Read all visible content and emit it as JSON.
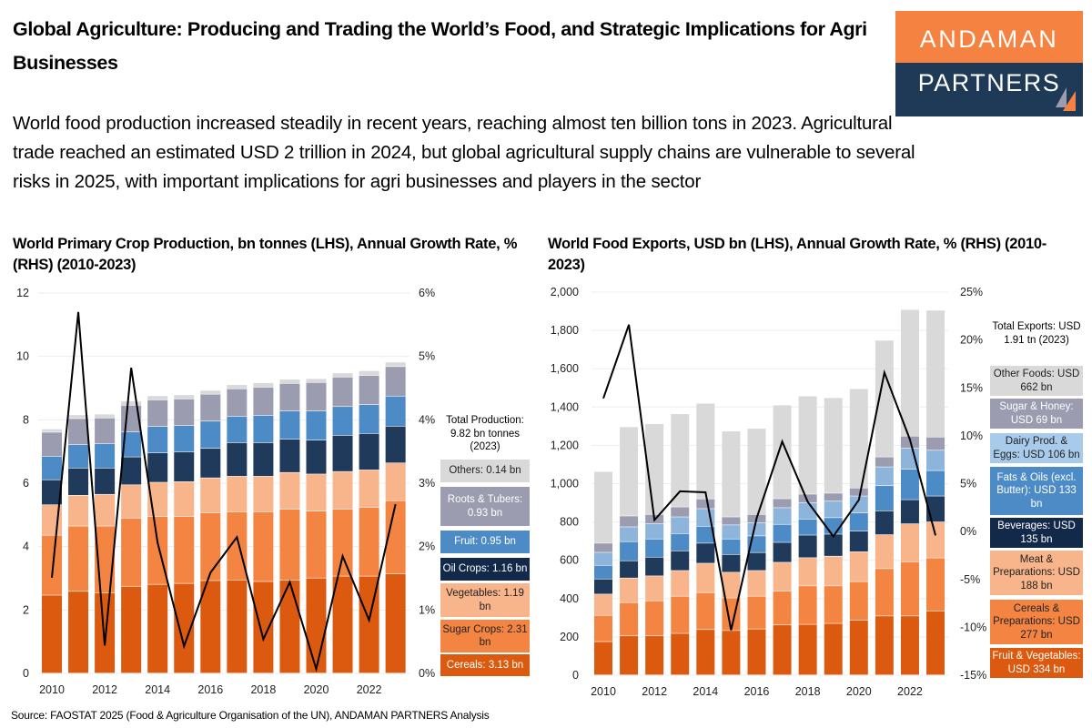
{
  "header": {
    "title": "Global Agriculture: Producing and Trading the World’s Food, and Strategic Implications for Agri Businesses",
    "logo_line1": "ANDAMAN",
    "logo_line2": "PARTNERS",
    "logo_colors": {
      "top": "#F58240",
      "bottom": "#1E3A57"
    },
    "intro": "World food production increased steadily in recent years, reaching almost ten billion tons in 2023. Agricultural trade reached an estimated USD 2 trillion in 2024, but global agricultural supply chains are vulnerable to several risks in 2025, with important implications for agri businesses and players in the sector"
  },
  "source": "Source: FAOSTAT 2025 (Food & Agriculture Organisation of the UN), ANDAMAN PARTNERS Analysis",
  "legends": {
    "production": {
      "header": "Total Production: 9.82 bn tonnes (2023)",
      "items": [
        "Others: 0.14 bn",
        "Roots & Tubers: 0.93 bn",
        "Fruit: 0.95 bn",
        "Oil Crops: 1.16 bn",
        "Vegetables: 1.19 bn",
        "Sugar Crops: 2.31 bn",
        "Cereals: 3.13 bn"
      ]
    },
    "exports": {
      "header": "Total Exports: USD 1.91 tn (2023)",
      "items": [
        "Other Foods: USD 662 bn",
        "Sugar & Honey: USD 69 bn",
        "Dairy Prod. & Eggs: USD 106 bn",
        "Fats & Oils (excl. Butter): USD 133 bn",
        "Beverages: USD 135 bn",
        "Meat & Preparations: USD 188 bn",
        "Cereals & Preparations: USD 277 bn",
        "Fruit & Vegetables: USD 334 bn"
      ]
    }
  },
  "chart_data": [
    {
      "type": "bar",
      "stacked": true,
      "title": "World Primary Crop Production, bn tonnes (LHS), Annual Growth Rate, % (RHS) (2010-2023)",
      "categories": [
        2010,
        2011,
        2012,
        2013,
        2014,
        2015,
        2016,
        2017,
        2018,
        2019,
        2020,
        2021,
        2022,
        2023
      ],
      "x_tick_labels": [
        "2010",
        "2012",
        "2014",
        "2016",
        "2018",
        "2020",
        "2022"
      ],
      "ylim": [
        0,
        12
      ],
      "y_ticks": [
        "0",
        "2",
        "4",
        "6",
        "8",
        "10",
        "12"
      ],
      "y2lim": [
        0,
        6
      ],
      "y2_ticks": [
        "0%",
        "1%",
        "2%",
        "3%",
        "4%",
        "5%",
        "6%"
      ],
      "grid": true,
      "legend_placement": "right",
      "series": [
        {
          "key": "cereals",
          "color": "#DC5A0F",
          "values": [
            2.46,
            2.58,
            2.53,
            2.74,
            2.8,
            2.83,
            2.92,
            2.94,
            2.89,
            2.93,
            3.0,
            3.06,
            3.06,
            3.13
          ]
        },
        {
          "key": "sugar",
          "color": "#F38442",
          "values": [
            1.89,
            2.06,
            2.11,
            2.15,
            2.14,
            2.11,
            2.14,
            2.15,
            2.2,
            2.24,
            2.11,
            2.11,
            2.17,
            2.31
          ]
        },
        {
          "key": "vegetables",
          "color": "#F8B48A",
          "values": [
            0.96,
            0.97,
            1.0,
            1.05,
            1.08,
            1.1,
            1.1,
            1.12,
            1.12,
            1.16,
            1.17,
            1.19,
            1.18,
            1.19
          ]
        },
        {
          "key": "oil",
          "color": "#1F3A5A",
          "values": [
            0.79,
            0.86,
            0.83,
            0.88,
            0.93,
            0.94,
            0.93,
            1.06,
            1.06,
            1.05,
            1.07,
            1.14,
            1.15,
            1.16
          ]
        },
        {
          "key": "fruit",
          "color": "#4D8BC6",
          "values": [
            0.74,
            0.74,
            0.77,
            0.79,
            0.83,
            0.83,
            0.86,
            0.83,
            0.86,
            0.89,
            0.92,
            0.91,
            0.91,
            0.95
          ]
        },
        {
          "key": "roots",
          "color": "#9B9CAF",
          "values": [
            0.76,
            0.82,
            0.81,
            0.84,
            0.84,
            0.84,
            0.85,
            0.87,
            0.89,
            0.87,
            0.9,
            0.93,
            0.92,
            0.93
          ]
        },
        {
          "key": "others",
          "color": "#D9D9D9",
          "values": [
            0.1,
            0.12,
            0.12,
            0.13,
            0.13,
            0.13,
            0.12,
            0.13,
            0.14,
            0.13,
            0.12,
            0.13,
            0.15,
            0.14
          ]
        }
      ],
      "line": {
        "key": "growth",
        "axis": "right",
        "color": "#000000",
        "values": [
          1.51,
          5.7,
          0.44,
          4.82,
          2.06,
          0.43,
          1.59,
          2.15,
          0.54,
          1.44,
          0.07,
          1.85,
          0.84,
          2.67
        ]
      }
    },
    {
      "type": "bar",
      "stacked": true,
      "title": "World Food Exports, USD bn (LHS), Annual Growth Rate, % (RHS) (2010-2023)",
      "categories": [
        2010,
        2011,
        2012,
        2013,
        2014,
        2015,
        2016,
        2017,
        2018,
        2019,
        2020,
        2021,
        2022,
        2023
      ],
      "x_tick_labels": [
        "2010",
        "2012",
        "2014",
        "2016",
        "2018",
        "2020",
        "2022"
      ],
      "ylim": [
        0,
        2000
      ],
      "y_ticks": [
        "0",
        "200",
        "400",
        "600",
        "800",
        "1,000",
        "1,200",
        "1,400",
        "1,600",
        "1,800",
        "2,000"
      ],
      "y2lim": [
        -15,
        25
      ],
      "y2_ticks": [
        "-15%",
        "-10%",
        "-5%",
        "0%",
        "5%",
        "10%",
        "15%",
        "20%",
        "25%"
      ],
      "grid": true,
      "legend_placement": "right",
      "series": [
        {
          "key": "fruit_veg",
          "color": "#DC5A0F",
          "values": [
            174,
            204,
            204,
            217,
            237,
            232,
            240,
            261,
            264,
            269,
            285,
            308,
            308,
            334
          ]
        },
        {
          "key": "cereals",
          "color": "#F38442",
          "values": [
            137,
            174,
            183,
            194,
            193,
            170,
            171,
            177,
            201,
            196,
            202,
            247,
            283,
            277
          ]
        },
        {
          "key": "meat",
          "color": "#F8B48A",
          "values": [
            111,
            128,
            130,
            134,
            153,
            134,
            134,
            150,
            147,
            155,
            156,
            177,
            198,
            188
          ]
        },
        {
          "key": "beverages",
          "color": "#1F3A5A",
          "values": [
            79,
            90,
            98,
            103,
            105,
            93,
            94,
            104,
            118,
            115,
            108,
            125,
            126,
            135
          ]
        },
        {
          "key": "fats_oils",
          "color": "#4D8BC6",
          "values": [
            71,
            100,
            95,
            90,
            88,
            81,
            87,
            94,
            84,
            86,
            95,
            131,
            159,
            133
          ]
        },
        {
          "key": "dairy",
          "color": "#8DB5DC",
          "values": [
            68,
            77,
            79,
            87,
            92,
            73,
            68,
            87,
            86,
            86,
            88,
            98,
            110,
            106
          ]
        },
        {
          "key": "sugar_honey",
          "color": "#9B9CAF",
          "values": [
            48,
            57,
            49,
            52,
            51,
            42,
            44,
            47,
            44,
            42,
            42,
            52,
            63,
            69
          ]
        },
        {
          "key": "other",
          "color": "#D9D9D9",
          "values": [
            374,
            465,
            473,
            486,
            499,
            448,
            449,
            489,
            512,
            498,
            518,
            609,
            661,
            662
          ]
        }
      ],
      "line": {
        "key": "growth",
        "axis": "right",
        "color": "#000000",
        "values": [
          13.9,
          21.6,
          1.2,
          4.2,
          4.1,
          -10.3,
          1.4,
          9.4,
          3.1,
          -0.5,
          3.3,
          16.6,
          9.6,
          -0.4
        ]
      }
    }
  ]
}
